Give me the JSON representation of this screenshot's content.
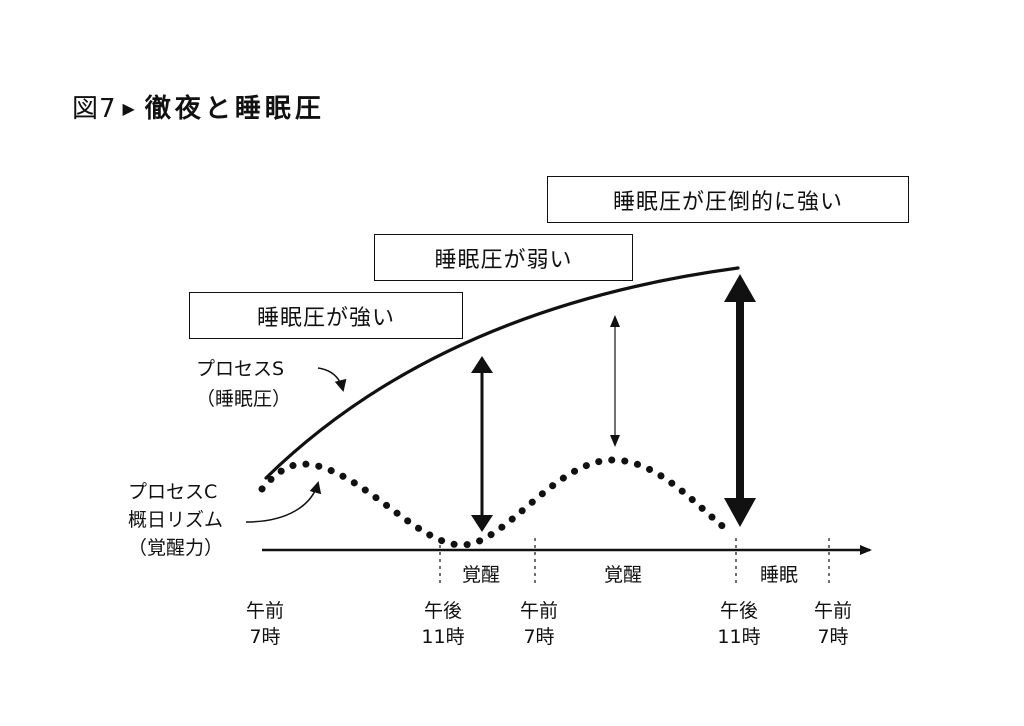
{
  "figure": {
    "number": "図7",
    "title": "徹夜と睡眠圧"
  },
  "boxes": {
    "strong": "睡眠圧が強い",
    "weak": "睡眠圧が弱い",
    "overwhelming": "睡眠圧が圧倒的に強い"
  },
  "process_s": {
    "line1": "プロセスS",
    "line2": "（睡眠圧）"
  },
  "process_c": {
    "line1": "プロセスC",
    "line2": "概日リズム",
    "line3": "（覚醒力）"
  },
  "segments": {
    "wake1": "覚醒",
    "wake2": "覚醒",
    "sleep": "睡眠"
  },
  "time_ticks": [
    {
      "line1": "午前",
      "line2": "7時"
    },
    {
      "line1": "午後",
      "line2": "11時"
    },
    {
      "line1": "午前",
      "line2": "7時"
    },
    {
      "line1": "午後",
      "line2": "11時"
    },
    {
      "line1": "午前",
      "line2": "7時"
    }
  ]
}
